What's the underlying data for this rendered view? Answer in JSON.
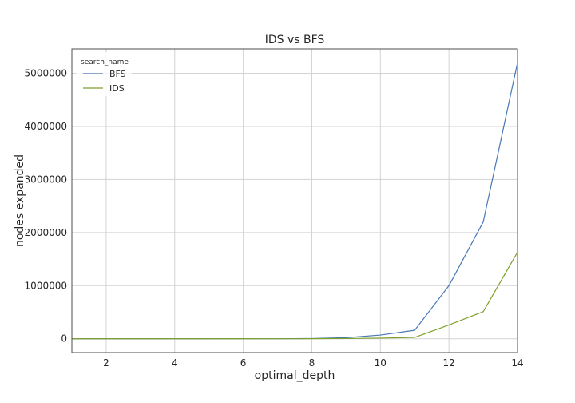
{
  "chart_data": {
    "type": "line",
    "title": "IDS vs BFS",
    "xlabel": "optimal_depth",
    "ylabel": "nodes expanded",
    "xlim": [
      1,
      14
    ],
    "ylim": [
      -260000,
      5460000
    ],
    "xticks": [
      2,
      4,
      6,
      8,
      10,
      12,
      14
    ],
    "yticks": [
      0,
      1000000,
      2000000,
      3000000,
      4000000,
      5000000
    ],
    "grid": true,
    "legend": {
      "title": "search_name",
      "placement": "top-left"
    },
    "x": [
      1,
      2,
      3,
      4,
      5,
      6,
      7,
      8,
      9,
      10,
      11,
      12,
      13,
      14
    ],
    "series": [
      {
        "name": "BFS",
        "color": "#4878b6",
        "values": [
          1,
          5,
          15,
          40,
          110,
          300,
          900,
          4000,
          20000,
          70000,
          160000,
          1000000,
          2200000,
          5200000
        ]
      },
      {
        "name": "IDS",
        "color": "#7ea02a",
        "values": [
          1,
          3,
          8,
          20,
          50,
          130,
          350,
          1000,
          4000,
          12000,
          25000,
          260000,
          510000,
          1630000
        ]
      }
    ]
  }
}
